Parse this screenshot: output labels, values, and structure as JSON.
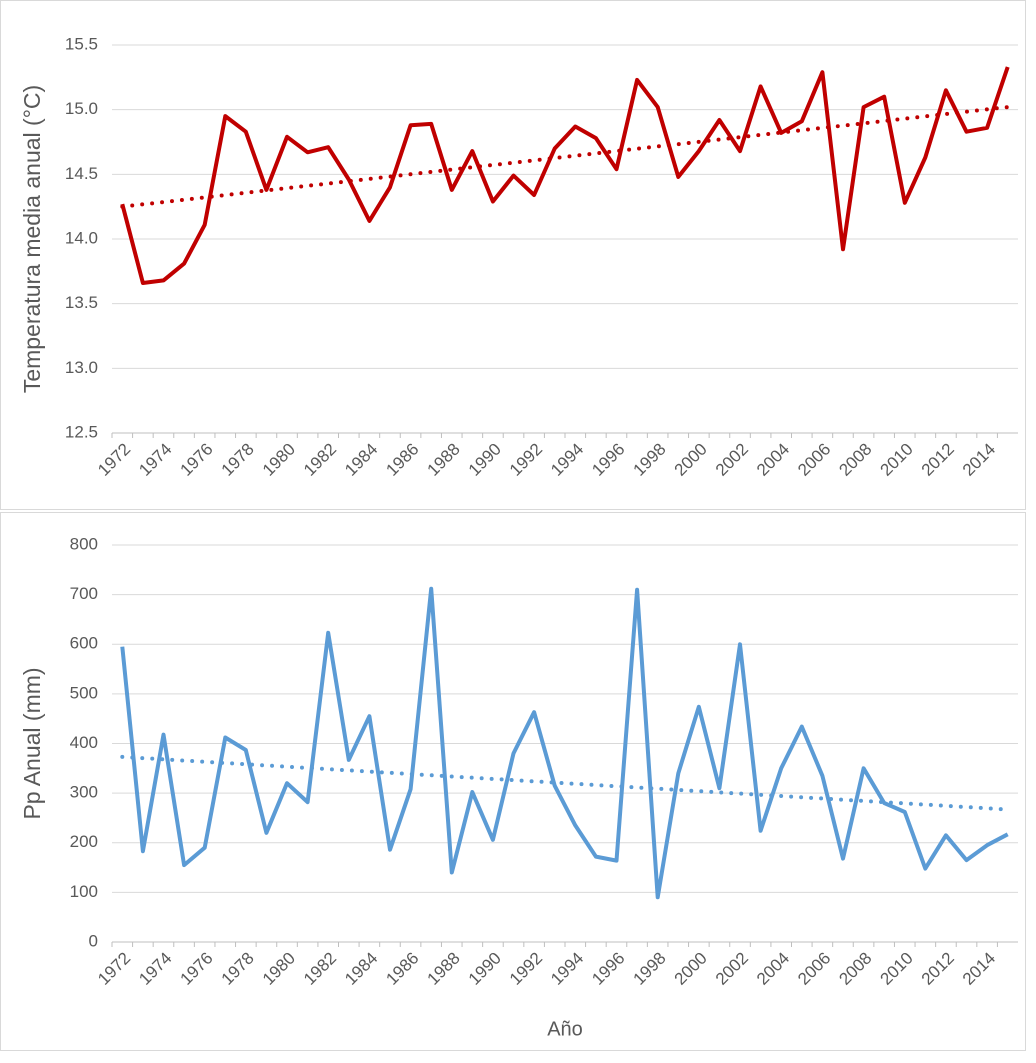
{
  "chart_data": [
    {
      "type": "line",
      "y_label": "Temperatura media anual (°C)",
      "x": [
        1972,
        1973,
        1974,
        1975,
        1976,
        1977,
        1978,
        1979,
        1980,
        1981,
        1982,
        1983,
        1984,
        1985,
        1986,
        1987,
        1988,
        1989,
        1990,
        1991,
        1992,
        1993,
        1994,
        1995,
        1996,
        1997,
        1998,
        1999,
        2000,
        2001,
        2002,
        2003,
        2004,
        2005,
        2006,
        2007,
        2008,
        2009,
        2010,
        2011,
        2012,
        2013,
        2014,
        2015
      ],
      "series": [
        {
          "color": "#c00000",
          "values": [
            14.27,
            13.66,
            13.68,
            13.81,
            14.11,
            14.95,
            14.83,
            14.38,
            14.79,
            14.67,
            14.71,
            14.46,
            14.14,
            14.4,
            14.88,
            14.89,
            14.38,
            14.68,
            14.29,
            14.49,
            14.34,
            14.7,
            14.87,
            14.78,
            14.54,
            15.23,
            15.02,
            14.48,
            14.68,
            14.92,
            14.68,
            15.18,
            14.82,
            14.91,
            15.29,
            13.92,
            15.02,
            15.1,
            14.28,
            14.63,
            15.15,
            14.83,
            14.86,
            15.33
          ]
        }
      ],
      "trendline": {
        "color": "#c00000",
        "x": [
          1972,
          2015
        ],
        "values": [
          14.25,
          15.02
        ]
      },
      "xlim": [
        1971.5,
        2015.5
      ],
      "xticks": [
        1972,
        1974,
        1976,
        1978,
        1980,
        1982,
        1984,
        1986,
        1988,
        1990,
        1992,
        1994,
        1996,
        1998,
        2000,
        2002,
        2004,
        2006,
        2008,
        2010,
        2012,
        2014
      ],
      "ylim": [
        12.5,
        15.5
      ],
      "yticks": [
        12.5,
        {
          "value": 13,
          "label": "13.0"
        },
        13.5,
        {
          "value": 14,
          "label": "14.0"
        },
        14.5,
        {
          "value": 15,
          "label": "15.0"
        },
        15.5
      ],
      "grid": true
    },
    {
      "type": "line",
      "y_label": "Pp Anual (mm)",
      "x_label": "Año",
      "x": [
        1972,
        1973,
        1974,
        1975,
        1976,
        1977,
        1978,
        1979,
        1980,
        1981,
        1982,
        1983,
        1984,
        1985,
        1986,
        1987,
        1988,
        1989,
        1990,
        1991,
        1992,
        1993,
        1994,
        1995,
        1996,
        1997,
        1998,
        1999,
        2000,
        2001,
        2002,
        2003,
        2004,
        2005,
        2006,
        2007,
        2008,
        2009,
        2010,
        2011,
        2012,
        2013,
        2014,
        2015
      ],
      "series": [
        {
          "color": "#5b9bd5",
          "values": [
            595,
            183,
            418,
            155,
            190,
            412,
            387,
            220,
            320,
            282,
            623,
            367,
            455,
            186,
            308,
            712,
            140,
            302,
            206,
            380,
            463,
            315,
            235,
            172,
            164,
            710,
            90,
            340,
            474,
            310,
            600,
            224,
            350,
            434,
            335,
            168,
            350,
            280,
            262,
            148,
            215,
            165,
            195,
            217
          ]
        }
      ],
      "trendline": {
        "color": "#5b9bd5",
        "x": [
          1972,
          2015
        ],
        "values": [
          373,
          267
        ]
      },
      "xlim": [
        1971.5,
        2015.5
      ],
      "xticks": [
        1972,
        1974,
        1976,
        1978,
        1980,
        1982,
        1984,
        1986,
        1988,
        1990,
        1992,
        1994,
        1996,
        1998,
        2000,
        2002,
        2004,
        2006,
        2008,
        2010,
        2012,
        2014
      ],
      "ylim": [
        0,
        800
      ],
      "yticks": [
        0,
        100,
        200,
        300,
        400,
        500,
        600,
        700,
        800
      ],
      "grid": true
    }
  ]
}
